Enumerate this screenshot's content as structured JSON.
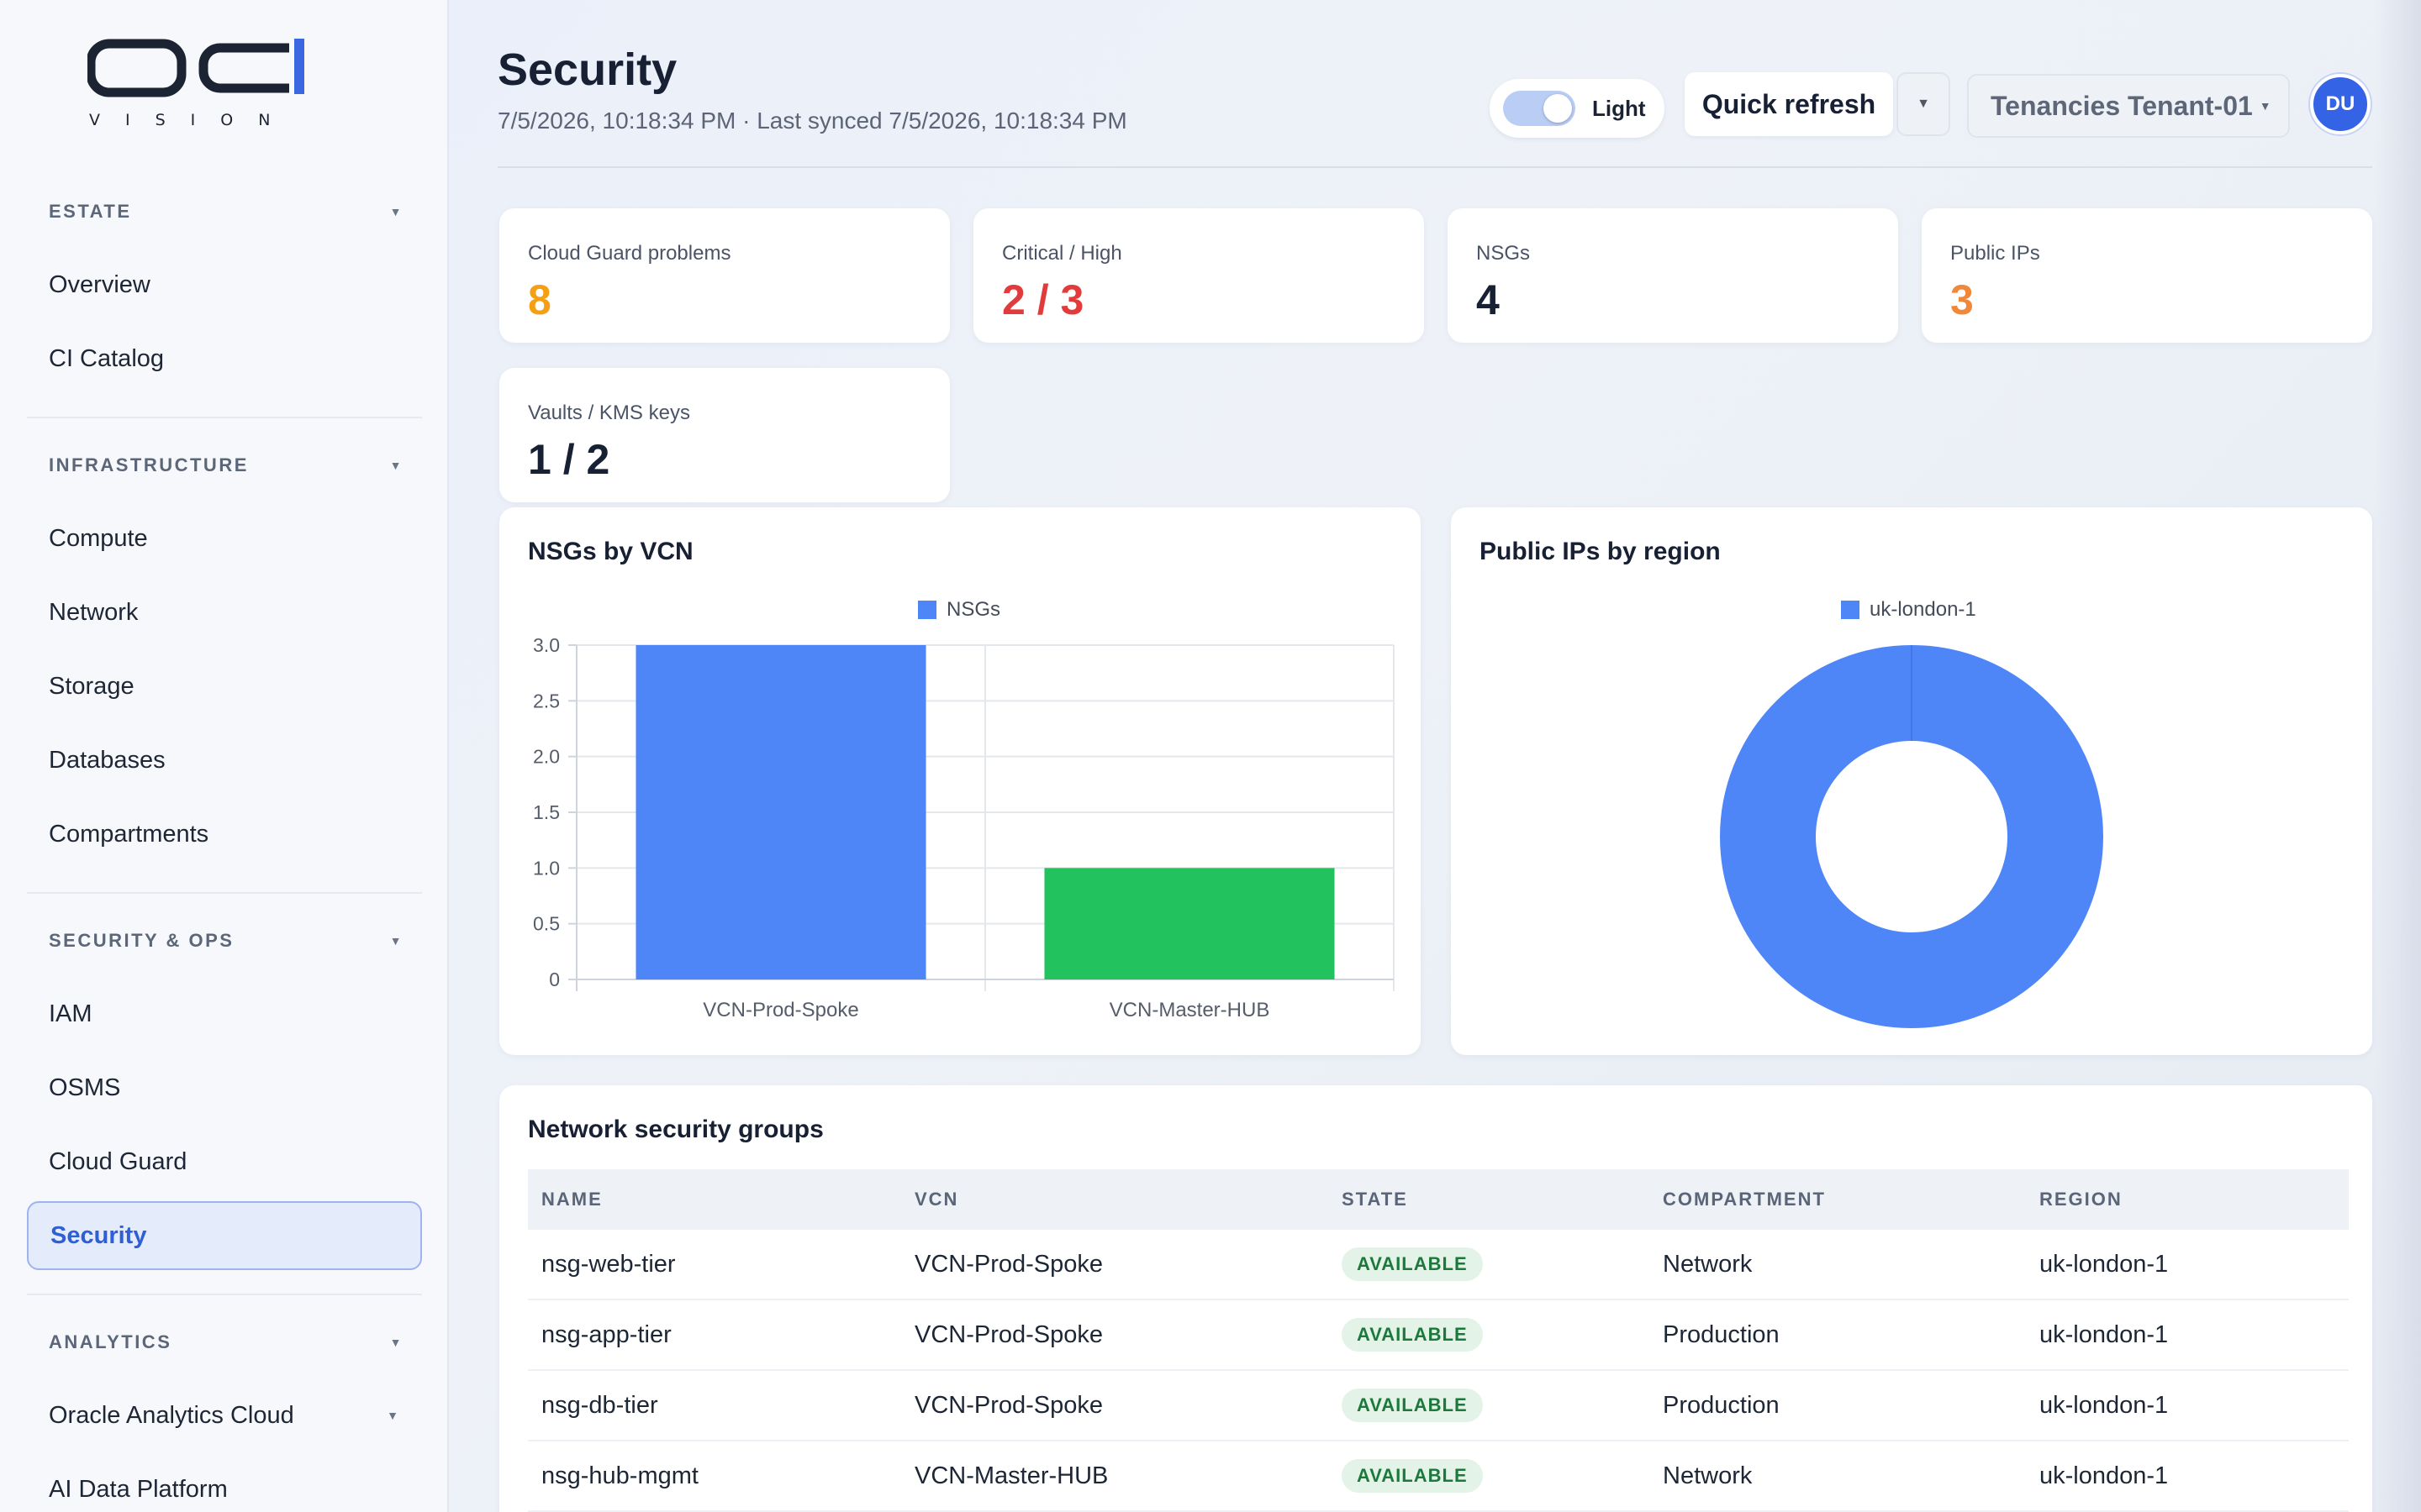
{
  "brand": {
    "sub": "VISION"
  },
  "sidebar": {
    "sections": [
      {
        "label": "ESTATE",
        "items": [
          "Overview",
          "CI Catalog"
        ]
      },
      {
        "label": "INFRASTRUCTURE",
        "items": [
          "Compute",
          "Network",
          "Storage",
          "Databases",
          "Compartments"
        ]
      },
      {
        "label": "SECURITY & OPS",
        "items": [
          "IAM",
          "OSMS",
          "Cloud Guard",
          "Security"
        ]
      },
      {
        "label": "ANALYTICS",
        "items": [
          "Oracle Analytics Cloud",
          "AI Data Platform"
        ]
      }
    ],
    "active_item": "Security"
  },
  "header": {
    "title": "Security",
    "subtitle": "7/5/2026, 10:18:34 PM · Last synced 7/5/2026, 10:18:34 PM",
    "theme_label": "Light",
    "refresh_label": "Quick refresh",
    "tenancy_label": "Tenancies Tenant-01",
    "avatar_initials": "DU"
  },
  "stats": [
    {
      "label": "Cloud Guard problems",
      "value": "8",
      "color": "#f5a014"
    },
    {
      "label": "Critical / High",
      "value": "2 / 3",
      "color": "#e23b3b"
    },
    {
      "label": "NSGs",
      "value": "4",
      "color": "#182033"
    },
    {
      "label": "Public IPs",
      "value": "3",
      "color": "#f0883a"
    },
    {
      "label": "Vaults / KMS keys",
      "value": "1 / 2",
      "color": "#182033"
    }
  ],
  "nsg_chart": {
    "title": "NSGs by VCN",
    "chart_data": {
      "type": "bar",
      "categories": [
        "VCN-Prod-Spoke",
        "VCN-Master-HUB"
      ],
      "series": [
        {
          "name": "NSGs",
          "values": [
            3,
            1
          ]
        }
      ],
      "bar_colors": [
        "#4f86f7",
        "#22c35e"
      ],
      "legend_color": "#4f86f7",
      "yticks": [
        "0",
        "0.5",
        "1.0",
        "1.5",
        "2.0",
        "2.5",
        "3.0"
      ],
      "ylim": [
        0,
        3
      ],
      "grid": true,
      "legend": "top-center"
    }
  },
  "ip_chart": {
    "title": "Public IPs by region",
    "chart_data": {
      "type": "pie",
      "labels": [
        "uk-london-1"
      ],
      "values": [
        3
      ],
      "colors": [
        "#4f86f7"
      ],
      "donut": true,
      "legend": "top-center"
    }
  },
  "table": {
    "title": "Network security groups",
    "columns": [
      "NAME",
      "VCN",
      "STATE",
      "COMPARTMENT",
      "REGION"
    ],
    "rows": [
      [
        "nsg-web-tier",
        "VCN-Prod-Spoke",
        "AVAILABLE",
        "Network",
        "uk-london-1"
      ],
      [
        "nsg-app-tier",
        "VCN-Prod-Spoke",
        "AVAILABLE",
        "Production",
        "uk-london-1"
      ],
      [
        "nsg-db-tier",
        "VCN-Prod-Spoke",
        "AVAILABLE",
        "Production",
        "uk-london-1"
      ],
      [
        "nsg-hub-mgmt",
        "VCN-Master-HUB",
        "AVAILABLE",
        "Network",
        "uk-london-1"
      ]
    ]
  }
}
